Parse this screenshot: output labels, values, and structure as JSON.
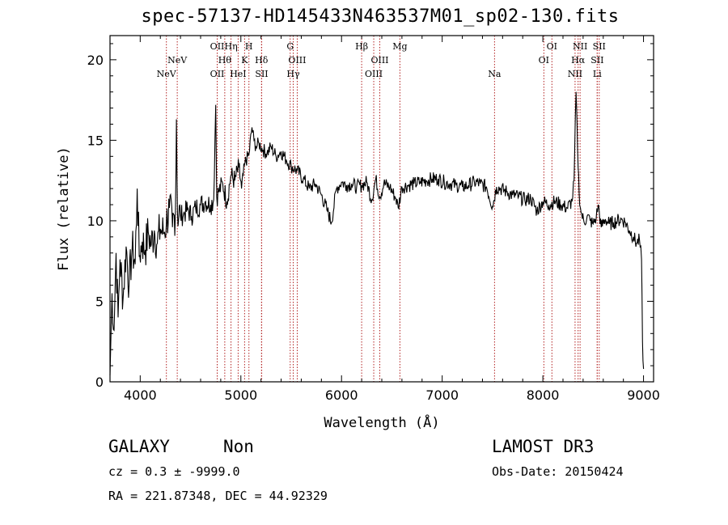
{
  "title": "spec-57137-HD145433N463537M01_sp02-130.fits",
  "chart_data": {
    "type": "line",
    "xlabel": "Wavelength (Å)",
    "ylabel": "Flux (relative)",
    "xlim": [
      3700,
      9100
    ],
    "ylim": [
      0,
      21.5
    ],
    "xticks": [
      4000,
      5000,
      6000,
      7000,
      8000,
      9000
    ],
    "yticks": [
      0,
      5,
      10,
      15,
      20
    ],
    "line_color": "#000000",
    "marker_color": "#b22222",
    "spectrum": {
      "x": [
        3700,
        3720,
        3740,
        3760,
        3780,
        3800,
        3830,
        3860,
        3890,
        3920,
        3950,
        3970,
        3990,
        4020,
        4050,
        4080,
        4110,
        4140,
        4170,
        4200,
        4230,
        4260,
        4290,
        4320,
        4350,
        4360,
        4370,
        4400,
        4430,
        4470,
        4510,
        4550,
        4600,
        4650,
        4700,
        4730,
        4750,
        4760,
        4780,
        4820,
        4861,
        4900,
        4940,
        4980,
        5007,
        5040,
        5080,
        5110,
        5130,
        5150,
        5180,
        5220,
        5260,
        5300,
        5350,
        5400,
        5450,
        5500,
        5560,
        5620,
        5680,
        5740,
        5800,
        5860,
        5900,
        5950,
        6000,
        6050,
        6100,
        6150,
        6200,
        6250,
        6300,
        6340,
        6380,
        6420,
        6480,
        6540,
        6563,
        6600,
        6660,
        6720,
        6780,
        6840,
        6900,
        6960,
        7020,
        7080,
        7140,
        7200,
        7260,
        7320,
        7380,
        7440,
        7500,
        7540,
        7580,
        7640,
        7700,
        7760,
        7820,
        7880,
        7940,
        8000,
        8060,
        8120,
        8180,
        8240,
        8290,
        8310,
        8330,
        8345,
        8360,
        8380,
        8410,
        8440,
        8470,
        8500,
        8530,
        8550,
        8580,
        8620,
        8660,
        8700,
        8740,
        8780,
        8820,
        8860,
        8900,
        8930,
        8960,
        8980,
        8990,
        9000
      ],
      "y": [
        0.4,
        5.5,
        3.2,
        8.0,
        4.0,
        7.6,
        5.2,
        8.4,
        6.0,
        8.3,
        7.3,
        12.0,
        7.8,
        8.7,
        8.2,
        9.3,
        8.5,
        9.4,
        8.6,
        9.5,
        9.2,
        9.9,
        10.8,
        9.6,
        10.6,
        16.3,
        10.5,
        10.3,
        10.4,
        10.7,
        10.3,
        10.8,
        11.0,
        11.2,
        11.0,
        11.3,
        17.2,
        11.5,
        11.8,
        12.3,
        11.2,
        12.8,
        12.5,
        13.3,
        12.0,
        13.6,
        14.1,
        15.8,
        15.0,
        14.6,
        14.8,
        14.4,
        14.2,
        14.6,
        14.0,
        14.3,
        13.8,
        13.4,
        13.1,
        12.6,
        12.0,
        12.3,
        11.6,
        10.6,
        9.9,
        12.0,
        12.4,
        12.2,
        12.3,
        12.1,
        12.2,
        12.4,
        11.3,
        12.6,
        11.5,
        12.3,
        12.1,
        11.4,
        10.8,
        12.1,
        12.2,
        12.3,
        12.4,
        12.5,
        12.6,
        12.6,
        12.4,
        12.3,
        12.2,
        12.1,
        12.2,
        12.4,
        12.3,
        12.1,
        10.9,
        12.1,
        12.0,
        11.8,
        11.6,
        11.5,
        11.3,
        11.4,
        10.6,
        11.2,
        11.0,
        11.2,
        11.0,
        10.8,
        11.2,
        12.5,
        18.0,
        14.5,
        11.8,
        10.5,
        9.9,
        10.3,
        10.0,
        9.8,
        10.2,
        11.0,
        9.6,
        10.1,
        9.8,
        9.9,
        10.0,
        10.1,
        9.9,
        9.4,
        9.0,
        8.6,
        8.8,
        7.6,
        2.5,
        0.8
      ]
    },
    "lines": [
      {
        "name": "NeV",
        "x": 4260,
        "row": 2
      },
      {
        "name": "NeV",
        "x": 4368,
        "row": 1
      },
      {
        "name": "OII",
        "x": 4765,
        "row": 2
      },
      {
        "name": "OII",
        "x": 4765,
        "row": 0
      },
      {
        "name": "Hθ",
        "x": 4840,
        "row": 1
      },
      {
        "name": "Hη",
        "x": 4902,
        "row": 0
      },
      {
        "name": "HeI",
        "x": 4973,
        "row": 2
      },
      {
        "name": "K",
        "x": 5037,
        "row": 1
      },
      {
        "name": "H",
        "x": 5080,
        "row": 0
      },
      {
        "name": "Hδ",
        "x": 5205,
        "row": 1
      },
      {
        "name": "SII",
        "x": 5207,
        "row": 2
      },
      {
        "name": "G",
        "x": 5490,
        "row": 0
      },
      {
        "name": "Hγ",
        "x": 5520,
        "row": 2
      },
      {
        "name": "OIII",
        "x": 5560,
        "row": 1
      },
      {
        "name": "Hβ",
        "x": 6200,
        "row": 0
      },
      {
        "name": "OIII",
        "x": 6320,
        "row": 2
      },
      {
        "name": "OIII",
        "x": 6380,
        "row": 1
      },
      {
        "name": "Mg",
        "x": 6580,
        "row": 0
      },
      {
        "name": "Na",
        "x": 7520,
        "row": 2
      },
      {
        "name": "OI",
        "x": 8010,
        "row": 1
      },
      {
        "name": "OI",
        "x": 8090,
        "row": 0
      },
      {
        "name": "Hα",
        "x": 8350,
        "row": 1
      },
      {
        "name": "NII",
        "x": 8320,
        "row": 2
      },
      {
        "name": "NII",
        "x": 8370,
        "row": 0
      },
      {
        "name": "SII",
        "x": 8540,
        "row": 1
      },
      {
        "name": "SII",
        "x": 8560,
        "row": 0
      },
      {
        "name": "Li",
        "x": 8540,
        "row": 2
      }
    ]
  },
  "info": {
    "class": "GALAXY",
    "subclass": "Non",
    "survey": "LAMOST DR3",
    "cz": "cz = 0.3 ± -9999.0",
    "obs_date": "Obs-Date: 20150424",
    "radec": "RA = 221.87348, DEC =  44.92329"
  }
}
